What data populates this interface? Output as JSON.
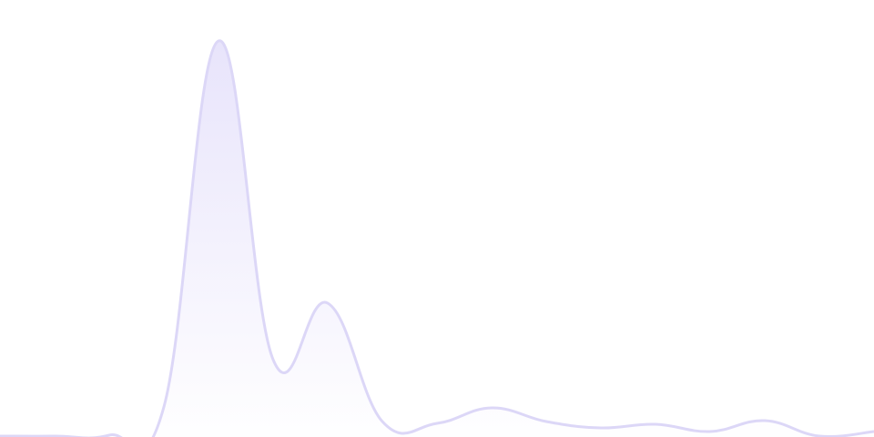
{
  "chart_data": {
    "type": "area",
    "title": "",
    "xlabel": "",
    "ylabel": "",
    "x": [
      0,
      1,
      2,
      3,
      4,
      5,
      6,
      7,
      8,
      9,
      10,
      11,
      12,
      13,
      14,
      15,
      16
    ],
    "values": [
      1,
      1,
      2,
      33,
      435,
      85,
      147,
      17,
      15,
      32,
      17,
      10,
      14,
      6,
      18,
      1,
      6
    ],
    "ylim": [
      0,
      480
    ],
    "grid": false,
    "smooth": true,
    "colors": {
      "stroke": "#dcd7f7",
      "fill_top": "#e8e4fb",
      "fill_bottom": "#ffffff"
    }
  }
}
